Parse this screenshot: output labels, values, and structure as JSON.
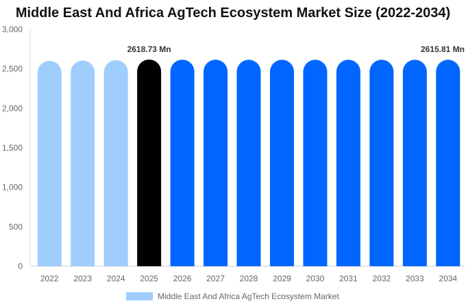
{
  "chart_data": {
    "type": "bar",
    "title": "Middle East And Africa AgTech Ecosystem Market Size (2022-2034)",
    "categories": [
      "2022",
      "2023",
      "2024",
      "2025",
      "2026",
      "2027",
      "2028",
      "2029",
      "2030",
      "2031",
      "2032",
      "2033",
      "2034"
    ],
    "series": [
      {
        "name": "Middle East And Africa AgTech Ecosystem Market",
        "values": [
          2602,
          2605,
          2610,
          2618.73,
          2617,
          2617,
          2616,
          2616,
          2616,
          2616,
          2616,
          2616,
          2615.81
        ]
      }
    ],
    "bar_colors": [
      "#9fcdfc",
      "#9fcdfc",
      "#9fcdfc",
      "#000000",
      "#0066ff",
      "#0066ff",
      "#0066ff",
      "#0066ff",
      "#0066ff",
      "#0066ff",
      "#0066ff",
      "#0066ff",
      "#0066ff"
    ],
    "legend_color": "#9fcdfc",
    "y_ticks": [
      "0",
      "500",
      "1,000",
      "1,500",
      "2,000",
      "2,500",
      "3,000"
    ],
    "ylim": [
      0,
      3000
    ],
    "xlabel": "",
    "ylabel": "",
    "annotations": [
      {
        "category": "2025",
        "text": "2618.73 Mn"
      },
      {
        "category": "2034",
        "text": "2615.81 Mn"
      }
    ],
    "grid": false,
    "legend_position": "bottom"
  }
}
